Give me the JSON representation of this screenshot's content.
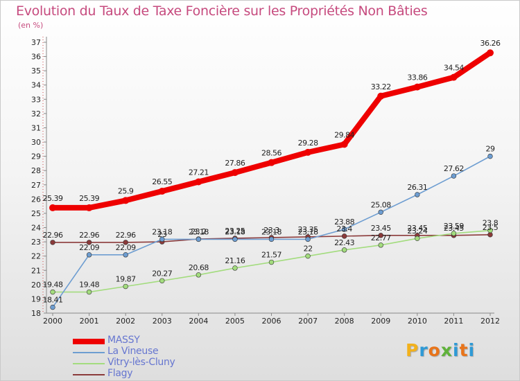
{
  "title": "Evolution du Taux de Taxe Foncière sur les Propriétés Non Bâties",
  "unit_label": "(en %)",
  "logo": {
    "text": "Proxiti",
    "letters": [
      "P",
      "r",
      "o",
      "x",
      "i",
      "t",
      "i"
    ],
    "colors": [
      "#f2b11c",
      "#2f9ad6",
      "#e8741a",
      "#5fb23a",
      "#2f9ad6",
      "#e8741a",
      "#2f9ad6"
    ]
  },
  "chart_data": {
    "type": "line",
    "x": [
      2000,
      2001,
      2002,
      2003,
      2004,
      2005,
      2006,
      2007,
      2008,
      2009,
      2010,
      2011,
      2012
    ],
    "ylim": [
      18,
      37
    ],
    "yticks": [
      18,
      19,
      20,
      21,
      22,
      23,
      24,
      25,
      26,
      27,
      28,
      29,
      30,
      31,
      32,
      33,
      34,
      35,
      36,
      37
    ],
    "grid": false,
    "legend_position": "bottom-left",
    "series": [
      {
        "name": "MASSY",
        "color": "#ee0000",
        "values": [
          25.39,
          25.39,
          25.9,
          26.55,
          27.21,
          27.86,
          28.56,
          29.28,
          29.84,
          33.22,
          33.86,
          34.54,
          36.26
        ],
        "labels": [
          "25.39",
          "25.39",
          "25.9",
          "26.55",
          "27.21",
          "27.86",
          "28.56",
          "29.28",
          "29.84",
          "33.22",
          "33.86",
          "34.54",
          "36.26"
        ]
      },
      {
        "name": "La Vineuse",
        "color": "#6d9dd1",
        "values": [
          18.41,
          22.09,
          22.09,
          23.18,
          23.18,
          23.18,
          23.18,
          23.18,
          23.88,
          25.08,
          26.31,
          27.62,
          29
        ],
        "labels": [
          "18.41",
          "22.09",
          "22.09",
          "23.18",
          "23.18",
          "23.18",
          "23.18",
          "23.18",
          "23.88",
          "25.08",
          "26.31",
          "27.62",
          "29"
        ]
      },
      {
        "name": "Vitry-lès-Cluny",
        "color": "#a3dc7e",
        "values": [
          19.48,
          19.48,
          19.87,
          20.27,
          20.68,
          21.16,
          21.57,
          22,
          22.43,
          22.77,
          23.24,
          23.59,
          23.8
        ],
        "labels": [
          "19.48",
          "19.48",
          "19.87",
          "20.27",
          "20.68",
          "21.16",
          "21.57",
          "22",
          "22.43",
          "22.77",
          "23.24",
          "23.59",
          "23.8"
        ]
      },
      {
        "name": "Flagy",
        "color": "#8b3a3a",
        "values": [
          22.96,
          22.96,
          22.96,
          23,
          23.2,
          23.25,
          23.3,
          23.35,
          23.4,
          23.45,
          23.45,
          23.45,
          23.5
        ],
        "labels": [
          "22.96",
          "22.96",
          "22.96",
          "23",
          "23.2",
          "23.25",
          "23.3",
          "23.35",
          "23.4",
          "23.45",
          "23.45",
          "23.45",
          "23.5"
        ]
      }
    ]
  }
}
